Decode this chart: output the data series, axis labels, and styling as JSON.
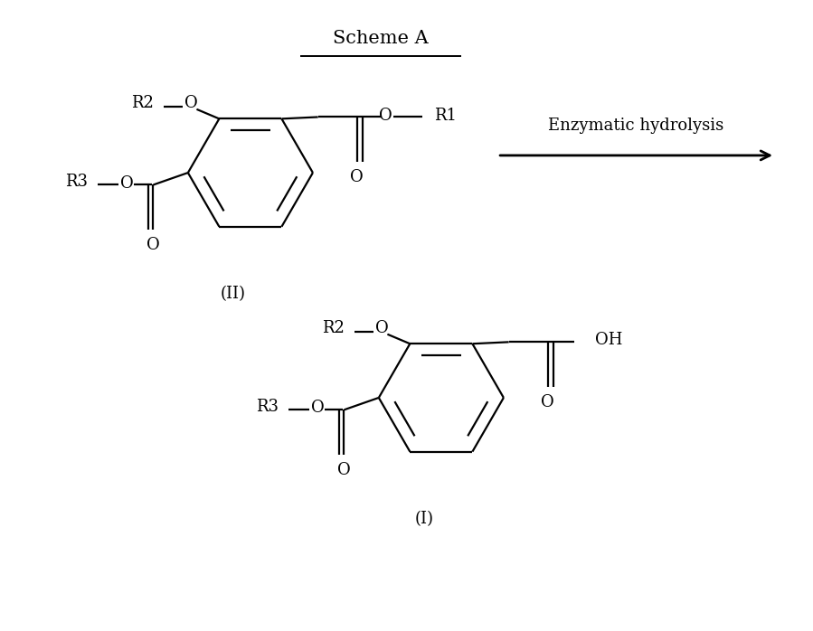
{
  "title": "Scheme A",
  "arrow_label": "Enzymatic hydrolysis",
  "compound_II_label": "(II)",
  "compound_I_label": "(I)",
  "background_color": "#ffffff",
  "line_color": "#000000",
  "font_size_title": 15,
  "font_size_label": 13,
  "font_size_arrow": 13,
  "font_size_atom": 13
}
